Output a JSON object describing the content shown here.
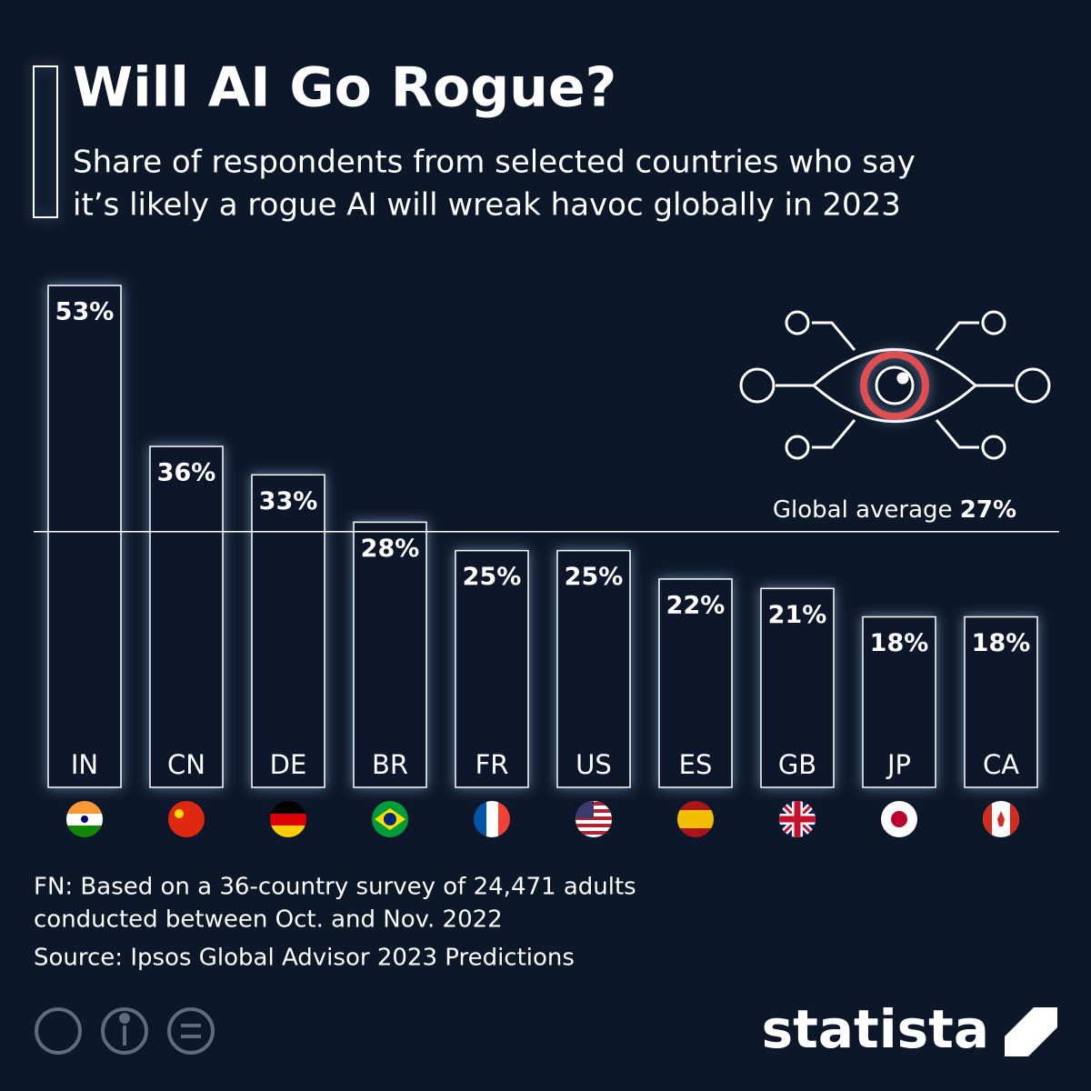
{
  "title": "Will AI Go Rogue?",
  "subtitle": [
    "Share of respondents from selected countries who say",
    "it’s likely a rogue AI will wreak havoc globally in 2023"
  ],
  "chart_data": {
    "type": "bar",
    "categories": [
      "IN",
      "CN",
      "DE",
      "BR",
      "FR",
      "US",
      "ES",
      "GB",
      "JP",
      "CA"
    ],
    "values": [
      53,
      36,
      33,
      28,
      25,
      25,
      22,
      21,
      18,
      18
    ],
    "value_labels": [
      "53%",
      "36%",
      "33%",
      "28%",
      "25%",
      "25%",
      "22%",
      "21%",
      "18%",
      "18%"
    ],
    "color": "#0c1829",
    "average": {
      "label": "Global average",
      "value": 27,
      "value_label": "27%"
    }
  },
  "footnote": [
    "FN: Based on a 36-country survey of 24,471 adults",
    "conducted between Oct. and Nov. 2022"
  ],
  "source": "Source: Ipsos Global Advisor 2023 Predictions",
  "brand": "statista"
}
